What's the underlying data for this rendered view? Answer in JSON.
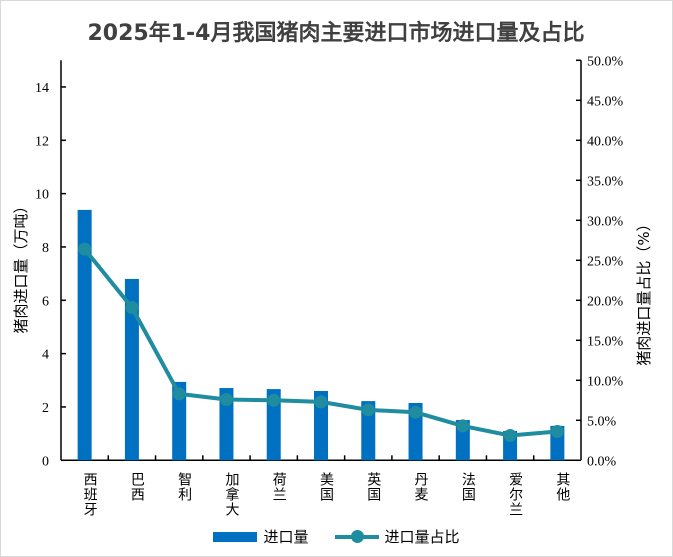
{
  "chart_data": {
    "type": "bar+line",
    "title": "2025年1-4月我国猪肉主要进口市场进口量及占比",
    "categories": [
      "西班牙",
      "巴西",
      "智利",
      "加拿大",
      "荷兰",
      "美国",
      "英国",
      "丹麦",
      "法国",
      "爱尔兰",
      "其他"
    ],
    "series": [
      {
        "name": "进口量",
        "type": "bar",
        "axis": "left",
        "color": "#0070c0",
        "values": [
          9.39,
          6.8,
          2.94,
          2.71,
          2.67,
          2.6,
          2.22,
          2.15,
          1.51,
          1.1,
          1.29
        ]
      },
      {
        "name": "进口量占比",
        "type": "line",
        "axis": "right",
        "color": "#1f8ca0",
        "values": [
          26.4,
          19.1,
          8.3,
          7.6,
          7.5,
          7.3,
          6.3,
          6.0,
          4.3,
          3.1,
          3.6
        ]
      }
    ],
    "ylabel": "猪肉进口量（万吨）",
    "y2label": "猪肉进口量占比（%）",
    "ylim": [
      0,
      15
    ],
    "y2lim": [
      0,
      50
    ],
    "yticks": [
      "0",
      "2",
      "4",
      "6",
      "8",
      "10",
      "12",
      "14"
    ],
    "y2ticks": [
      "0.0%",
      "5.0%",
      "10.0%",
      "15.0%",
      "20.0%",
      "25.0%",
      "30.0%",
      "35.0%",
      "40.0%",
      "45.0%",
      "50.0%"
    ],
    "legend_position": "bottom",
    "grid": false
  }
}
